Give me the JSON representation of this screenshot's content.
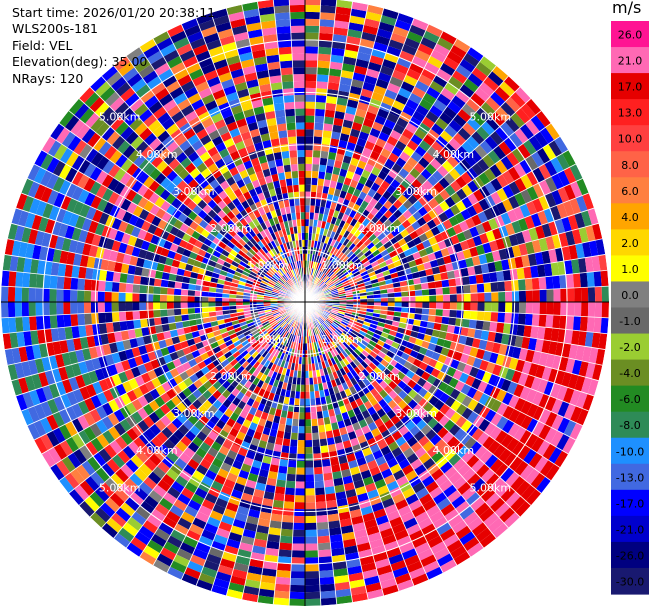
{
  "metadata": {
    "start_time_label": "Start time:",
    "start_time": "2026/01/20 20:38:11",
    "site": "WLS200s-181",
    "field_label": "Field:",
    "field": "VEL",
    "elevation_label": "Elevation(deg):",
    "elevation": "35.00",
    "nrays_label": "NRays:",
    "nrays": "120"
  },
  "colorbar": {
    "unit": "m/s",
    "ticks": [
      "26.0",
      "21.0",
      "17.0",
      "13.0",
      "10.0",
      "8.0",
      "6.0",
      "4.0",
      "2.0",
      "1.0",
      "0.0",
      "-1.0",
      "-2.0",
      "-4.0",
      "-6.0",
      "-8.0",
      "-10.0",
      "-13.0",
      "-17.0",
      "-21.0",
      "-26.0",
      "-30.0"
    ],
    "colors": [
      "#ff1493",
      "#ff69b4",
      "#e60000",
      "#ff2020",
      "#ff4040",
      "#ff6347",
      "#ff8040",
      "#ffa500",
      "#ffd700",
      "#ffff00",
      "#808080",
      "#696969",
      "#9acd32",
      "#6b8e23",
      "#228b22",
      "#2e8b57",
      "#1e90ff",
      "#4169e1",
      "#0000ff",
      "#0000cd",
      "#000080",
      "#191970"
    ]
  },
  "chart_data": {
    "type": "ppi",
    "field": "VEL",
    "units": "m/s",
    "nrays": 120,
    "range_rings_km": [
      1,
      2,
      3,
      4,
      5
    ],
    "ring_labels": [
      "1.00km",
      "2.00km",
      "3.00km",
      "4.00km",
      "5.00km"
    ],
    "vmin": -30.0,
    "vmax": 26.0
  }
}
